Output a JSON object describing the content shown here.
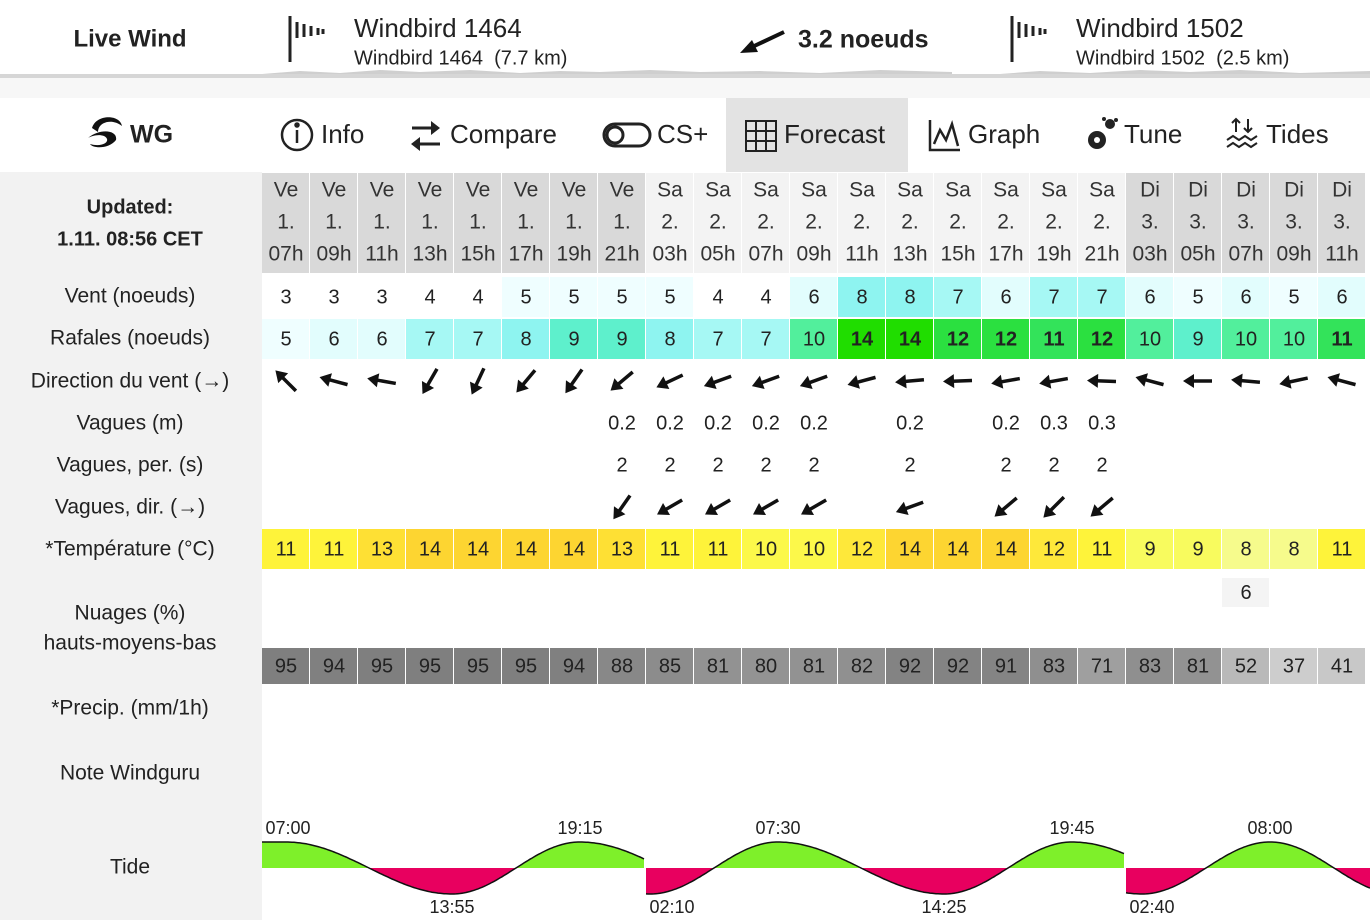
{
  "live_wind": {
    "title": "Live Wind",
    "stations": [
      {
        "name": "Windbird 1464",
        "detail": "Windbird 1464  (7.7 km)"
      },
      {
        "name": "Windbird 1502",
        "detail": "Windbird 1502  (2.5 km)"
      }
    ],
    "current": "3.2 noeuds"
  },
  "nav": {
    "logo": "WG",
    "tabs": [
      "Info",
      "Compare",
      "CS+",
      "Forecast",
      "Graph",
      "Tune",
      "Tides"
    ],
    "active": 3
  },
  "forecast": {
    "updated_label": "Updated:",
    "updated": "1.11. 08:56 CET",
    "columns": [
      {
        "day": "Ve",
        "date": "1.",
        "hour": "07h"
      },
      {
        "day": "Ve",
        "date": "1.",
        "hour": "09h"
      },
      {
        "day": "Ve",
        "date": "1.",
        "hour": "11h"
      },
      {
        "day": "Ve",
        "date": "1.",
        "hour": "13h"
      },
      {
        "day": "Ve",
        "date": "1.",
        "hour": "15h"
      },
      {
        "day": "Ve",
        "date": "1.",
        "hour": "17h"
      },
      {
        "day": "Ve",
        "date": "1.",
        "hour": "19h"
      },
      {
        "day": "Ve",
        "date": "1.",
        "hour": "21h"
      },
      {
        "day": "Sa",
        "date": "2.",
        "hour": "03h"
      },
      {
        "day": "Sa",
        "date": "2.",
        "hour": "05h"
      },
      {
        "day": "Sa",
        "date": "2.",
        "hour": "07h"
      },
      {
        "day": "Sa",
        "date": "2.",
        "hour": "09h"
      },
      {
        "day": "Sa",
        "date": "2.",
        "hour": "11h"
      },
      {
        "day": "Sa",
        "date": "2.",
        "hour": "13h"
      },
      {
        "day": "Sa",
        "date": "2.",
        "hour": "15h"
      },
      {
        "day": "Sa",
        "date": "2.",
        "hour": "17h"
      },
      {
        "day": "Sa",
        "date": "2.",
        "hour": "19h"
      },
      {
        "day": "Sa",
        "date": "2.",
        "hour": "21h"
      },
      {
        "day": "Di",
        "date": "3.",
        "hour": "03h"
      },
      {
        "day": "Di",
        "date": "3.",
        "hour": "05h"
      },
      {
        "day": "Di",
        "date": "3.",
        "hour": "07h"
      },
      {
        "day": "Di",
        "date": "3.",
        "hour": "09h"
      },
      {
        "day": "Di",
        "date": "3.",
        "hour": "11h"
      }
    ],
    "wind": {
      "label": "Vent (noeuds)",
      "values": [
        3,
        3,
        3,
        4,
        4,
        5,
        5,
        5,
        5,
        4,
        4,
        6,
        8,
        8,
        7,
        6,
        7,
        7,
        6,
        5,
        6,
        5,
        6
      ]
    },
    "gusts": {
      "label": "Rafales (noeuds)",
      "values": [
        5,
        6,
        6,
        7,
        7,
        8,
        9,
        9,
        8,
        7,
        7,
        10,
        14,
        14,
        12,
        12,
        11,
        12,
        10,
        9,
        10,
        10,
        11
      ]
    },
    "direction": {
      "label": "Direction du vent (→)",
      "values": [
        225,
        195,
        190,
        120,
        115,
        130,
        125,
        140,
        155,
        160,
        160,
        160,
        165,
        175,
        178,
        170,
        170,
        182,
        195,
        180,
        185,
        168,
        195
      ]
    },
    "waves": {
      "label": "Vagues (m)",
      "values": [
        null,
        null,
        null,
        null,
        null,
        null,
        null,
        0.2,
        0.2,
        0.2,
        0.2,
        0.2,
        null,
        0.2,
        null,
        0.2,
        0.3,
        0.3,
        null,
        null,
        null,
        null,
        null
      ]
    },
    "wave_period": {
      "label": "Vagues, per. (s)",
      "values": [
        null,
        null,
        null,
        null,
        null,
        null,
        null,
        2,
        2,
        2,
        2,
        2,
        null,
        2,
        null,
        2,
        2,
        2,
        null,
        null,
        null,
        null,
        null
      ]
    },
    "wave_direction": {
      "label": "Vagues, dir. (→)",
      "values": [
        null,
        null,
        null,
        null,
        null,
        null,
        null,
        125,
        150,
        150,
        150,
        150,
        null,
        160,
        null,
        140,
        135,
        140,
        null,
        null,
        null,
        null,
        null
      ]
    },
    "temperature": {
      "label": "*Température (°C)",
      "values": [
        11,
        11,
        13,
        14,
        14,
        14,
        14,
        13,
        11,
        11,
        10,
        10,
        12,
        14,
        14,
        14,
        12,
        11,
        9,
        9,
        8,
        8,
        11
      ]
    },
    "clouds": {
      "label": "Nuages (%)",
      "sublabel": "hauts-moyens-bas",
      "mid": [
        null,
        null,
        null,
        null,
        null,
        null,
        null,
        null,
        null,
        null,
        null,
        null,
        null,
        null,
        null,
        null,
        null,
        null,
        null,
        null,
        6,
        null,
        null
      ],
      "low": [
        95,
        94,
        95,
        95,
        95,
        95,
        94,
        88,
        85,
        81,
        80,
        81,
        82,
        92,
        92,
        91,
        83,
        71,
        83,
        81,
        52,
        37,
        41
      ]
    },
    "precip": {
      "label": "*Precip. (mm/1h)"
    },
    "rating": {
      "label": "Note Windguru"
    },
    "tide": {
      "label": "Tide",
      "panels": [
        {
          "first": "high",
          "times": [
            "07:00",
            "13:55",
            "19:15"
          ]
        },
        {
          "first": "low",
          "times": [
            "02:10",
            "07:30",
            "14:25",
            "19:45"
          ]
        },
        {
          "first": "low",
          "times": [
            "02:40",
            "08:00"
          ]
        }
      ]
    }
  }
}
